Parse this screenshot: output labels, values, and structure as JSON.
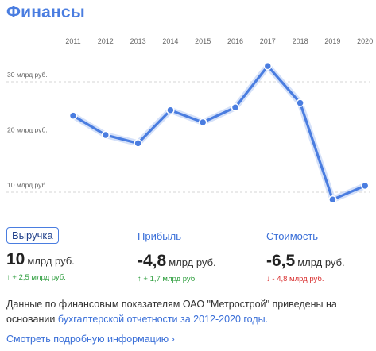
{
  "title": "Финансы",
  "chart_data": {
    "type": "line",
    "categories": [
      "2011",
      "2012",
      "2013",
      "2014",
      "2015",
      "2016",
      "2017",
      "2018",
      "2019",
      "2020"
    ],
    "values": [
      23,
      19.5,
      18,
      24,
      21.8,
      24.5,
      32,
      25.3,
      7.8,
      10.3
    ],
    "y_ticks": [
      {
        "value": 10,
        "label": "10 млрд руб."
      },
      {
        "value": 20,
        "label": "20 млрд руб."
      },
      {
        "value": 30,
        "label": "30 млрд руб."
      }
    ],
    "ylim": [
      5,
      36
    ],
    "grid": true,
    "line_color": "#4a7de0"
  },
  "metrics": [
    {
      "label": "Выручка",
      "value": "10",
      "unit": "млрд руб.",
      "arrow": "↑",
      "change": "+ 2,5 млрд руб.",
      "direction": "up"
    },
    {
      "label": "Прибыль",
      "value": "-4,8",
      "unit": "млрд руб.",
      "arrow": "↑",
      "change": "+ 1,7 млрд руб.",
      "direction": "up"
    },
    {
      "label": "Стоимость",
      "value": "-6,5",
      "unit": "млрд руб.",
      "arrow": "↓",
      "change": "- 4,8 млрд руб.",
      "direction": "down"
    }
  ],
  "note": {
    "text": "Данные по финансовым показателям ОАО \"Метрострой\" приведены на основании ",
    "link": "бухгалтерской отчетности за 2012-2020 годы."
  },
  "more_link": "Смотреть подробную информацию",
  "more_icon": "chevron-right-icon"
}
